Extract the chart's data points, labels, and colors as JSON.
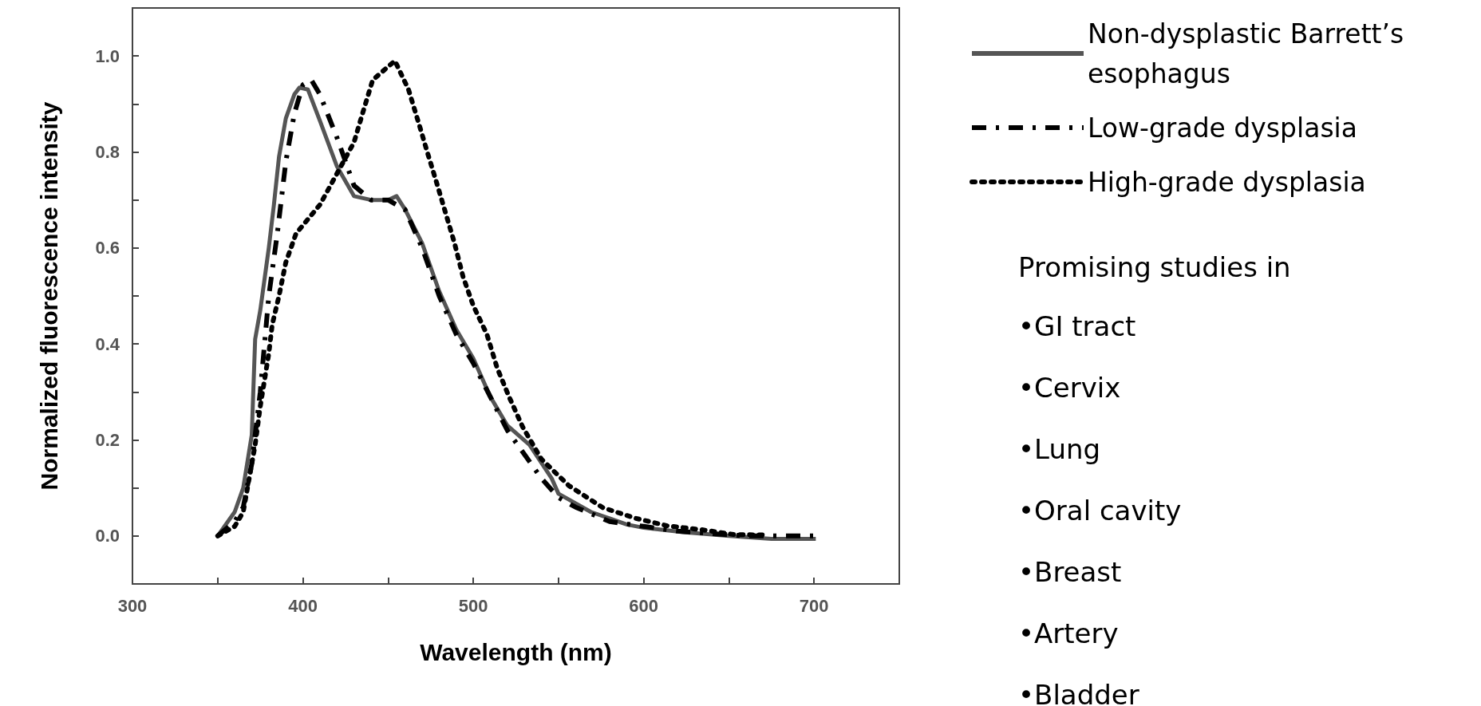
{
  "chart_data": {
    "type": "line",
    "xlabel": "Wavelength (nm)",
    "ylabel": "Normalized fluorescence intensity",
    "xlim": [
      300,
      750
    ],
    "ylim": [
      -0.1,
      1.1
    ],
    "xticks": [
      300,
      {
        "value": 350,
        "label": null
      },
      400,
      {
        "value": 450,
        "label": null
      },
      500,
      {
        "value": 550,
        "label": null
      },
      600,
      {
        "value": 650,
        "label": null
      },
      700
    ],
    "yticks": [
      {
        "value": 0,
        "label": "0.0"
      },
      {
        "value": 0.1,
        "label": null
      },
      {
        "value": 0.2,
        "label": "0.2"
      },
      {
        "value": 0.3,
        "label": null
      },
      {
        "value": 0.4,
        "label": "0.4"
      },
      {
        "value": 0.5,
        "label": null
      },
      {
        "value": 0.6,
        "label": "0.6"
      },
      {
        "value": 0.7,
        "label": null
      },
      {
        "value": 0.8,
        "label": "0.8"
      },
      {
        "value": 0.9,
        "label": null
      },
      {
        "value": 1.0,
        "label": "1.0"
      }
    ],
    "grid": false,
    "legend": "right",
    "marker": "none",
    "annotations": [
      "Promising studies in",
      "•GI tract",
      "•Cervix",
      "•Lung",
      "•Oral cavity",
      "•Breast",
      "•Artery",
      "•Bladder"
    ],
    "series": [
      {
        "name": "Non-dysplastic Barrett’s esophagus",
        "color": "#555555",
        "line_style": "solid",
        "x": [
          350,
          360,
          365,
          370,
          372,
          375,
          380,
          383,
          386,
          390,
          395,
          398,
          403,
          410,
          420,
          430,
          440,
          450,
          455,
          460,
          470,
          480,
          490,
          500,
          510,
          520,
          533,
          546,
          550,
          569,
          590,
          600,
          623,
          650,
          675,
          701
        ],
        "values": [
          0.0,
          0.05,
          0.1,
          0.21,
          0.41,
          0.47,
          0.6,
          0.69,
          0.79,
          0.87,
          0.92,
          0.934,
          0.93,
          0.865,
          0.77,
          0.708,
          0.7,
          0.7,
          0.708,
          0.68,
          0.61,
          0.51,
          0.43,
          0.37,
          0.29,
          0.23,
          0.19,
          0.12,
          0.088,
          0.05,
          0.024,
          0.017,
          0.008,
          0.0,
          -0.006,
          -0.006
        ]
      },
      {
        "name": "Low-grade dysplasia",
        "color": "#000000",
        "line_style": "dashed",
        "x": [
          350,
          360,
          365,
          370,
          375,
          380,
          385,
          390,
          395,
          400,
          405,
          410,
          420,
          430,
          440,
          450,
          460,
          470,
          480,
          490,
          500,
          510,
          520,
          530,
          540,
          550,
          560,
          580,
          600,
          620,
          640,
          660,
          680,
          700
        ],
        "values": [
          0.0,
          0.03,
          0.06,
          0.15,
          0.3,
          0.5,
          0.63,
          0.78,
          0.88,
          0.94,
          0.95,
          0.92,
          0.83,
          0.73,
          0.7,
          0.7,
          0.68,
          0.6,
          0.5,
          0.42,
          0.36,
          0.29,
          0.22,
          0.17,
          0.12,
          0.08,
          0.06,
          0.03,
          0.02,
          0.01,
          0.005,
          0.0,
          0.0,
          0.0
        ]
      },
      {
        "name": "High-grade dysplasia",
        "color": "#000000",
        "line_style": "dotted",
        "x": [
          350,
          360,
          365,
          372,
          375,
          380,
          382,
          386,
          390,
          396,
          410,
          430,
          435,
          441,
          454,
          462,
          468,
          473,
          479,
          484,
          489,
          494,
          500,
          508,
          514,
          521,
          529,
          540,
          556,
          576,
          595,
          614,
          634,
          653,
          672
        ],
        "values": [
          0.0,
          0.02,
          0.05,
          0.19,
          0.27,
          0.38,
          0.44,
          0.5,
          0.57,
          0.63,
          0.69,
          0.82,
          0.88,
          0.95,
          0.99,
          0.93,
          0.86,
          0.8,
          0.73,
          0.67,
          0.61,
          0.54,
          0.48,
          0.42,
          0.35,
          0.29,
          0.227,
          0.16,
          0.105,
          0.059,
          0.037,
          0.021,
          0.013,
          0.003,
          0.002
        ]
      }
    ]
  }
}
